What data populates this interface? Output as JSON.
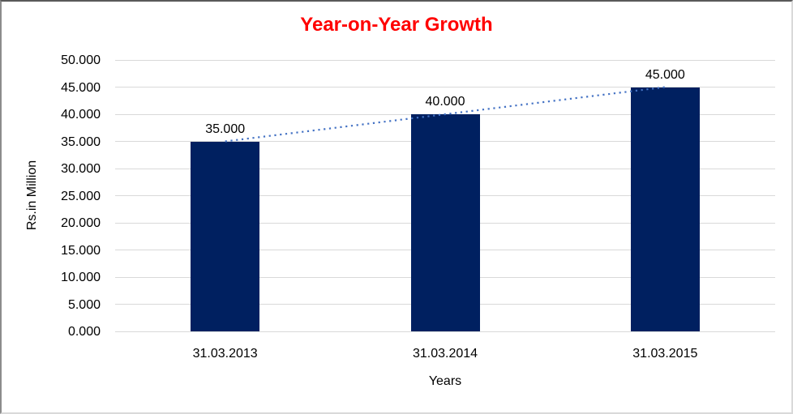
{
  "chart_data": {
    "type": "bar",
    "title": "Year-on-Year Growth",
    "xlabel": "Years",
    "ylabel": "Rs.in Million",
    "categories": [
      "31.03.2013",
      "31.03.2014",
      "31.03.2015"
    ],
    "values": [
      35,
      40,
      45
    ],
    "data_labels": [
      "35.000",
      "40.000",
      "45.000"
    ],
    "ylim": [
      0,
      50
    ],
    "ytick_step": 5,
    "ytick_labels": [
      "50.000",
      "45.000",
      "40.000",
      "35.000",
      "30.000",
      "25.000",
      "20.000",
      "15.000",
      "10.000",
      "5.000",
      "0.000"
    ],
    "grid": true,
    "legend": "none",
    "trendline": {
      "type": "linear",
      "style": "dotted"
    },
    "colors": {
      "title": "#ff0000",
      "bar": "#002060",
      "trendline": "#4472c4",
      "gridline": "#d9d9d9",
      "axis_line": "#d9d9d9",
      "text": "#000000"
    }
  }
}
